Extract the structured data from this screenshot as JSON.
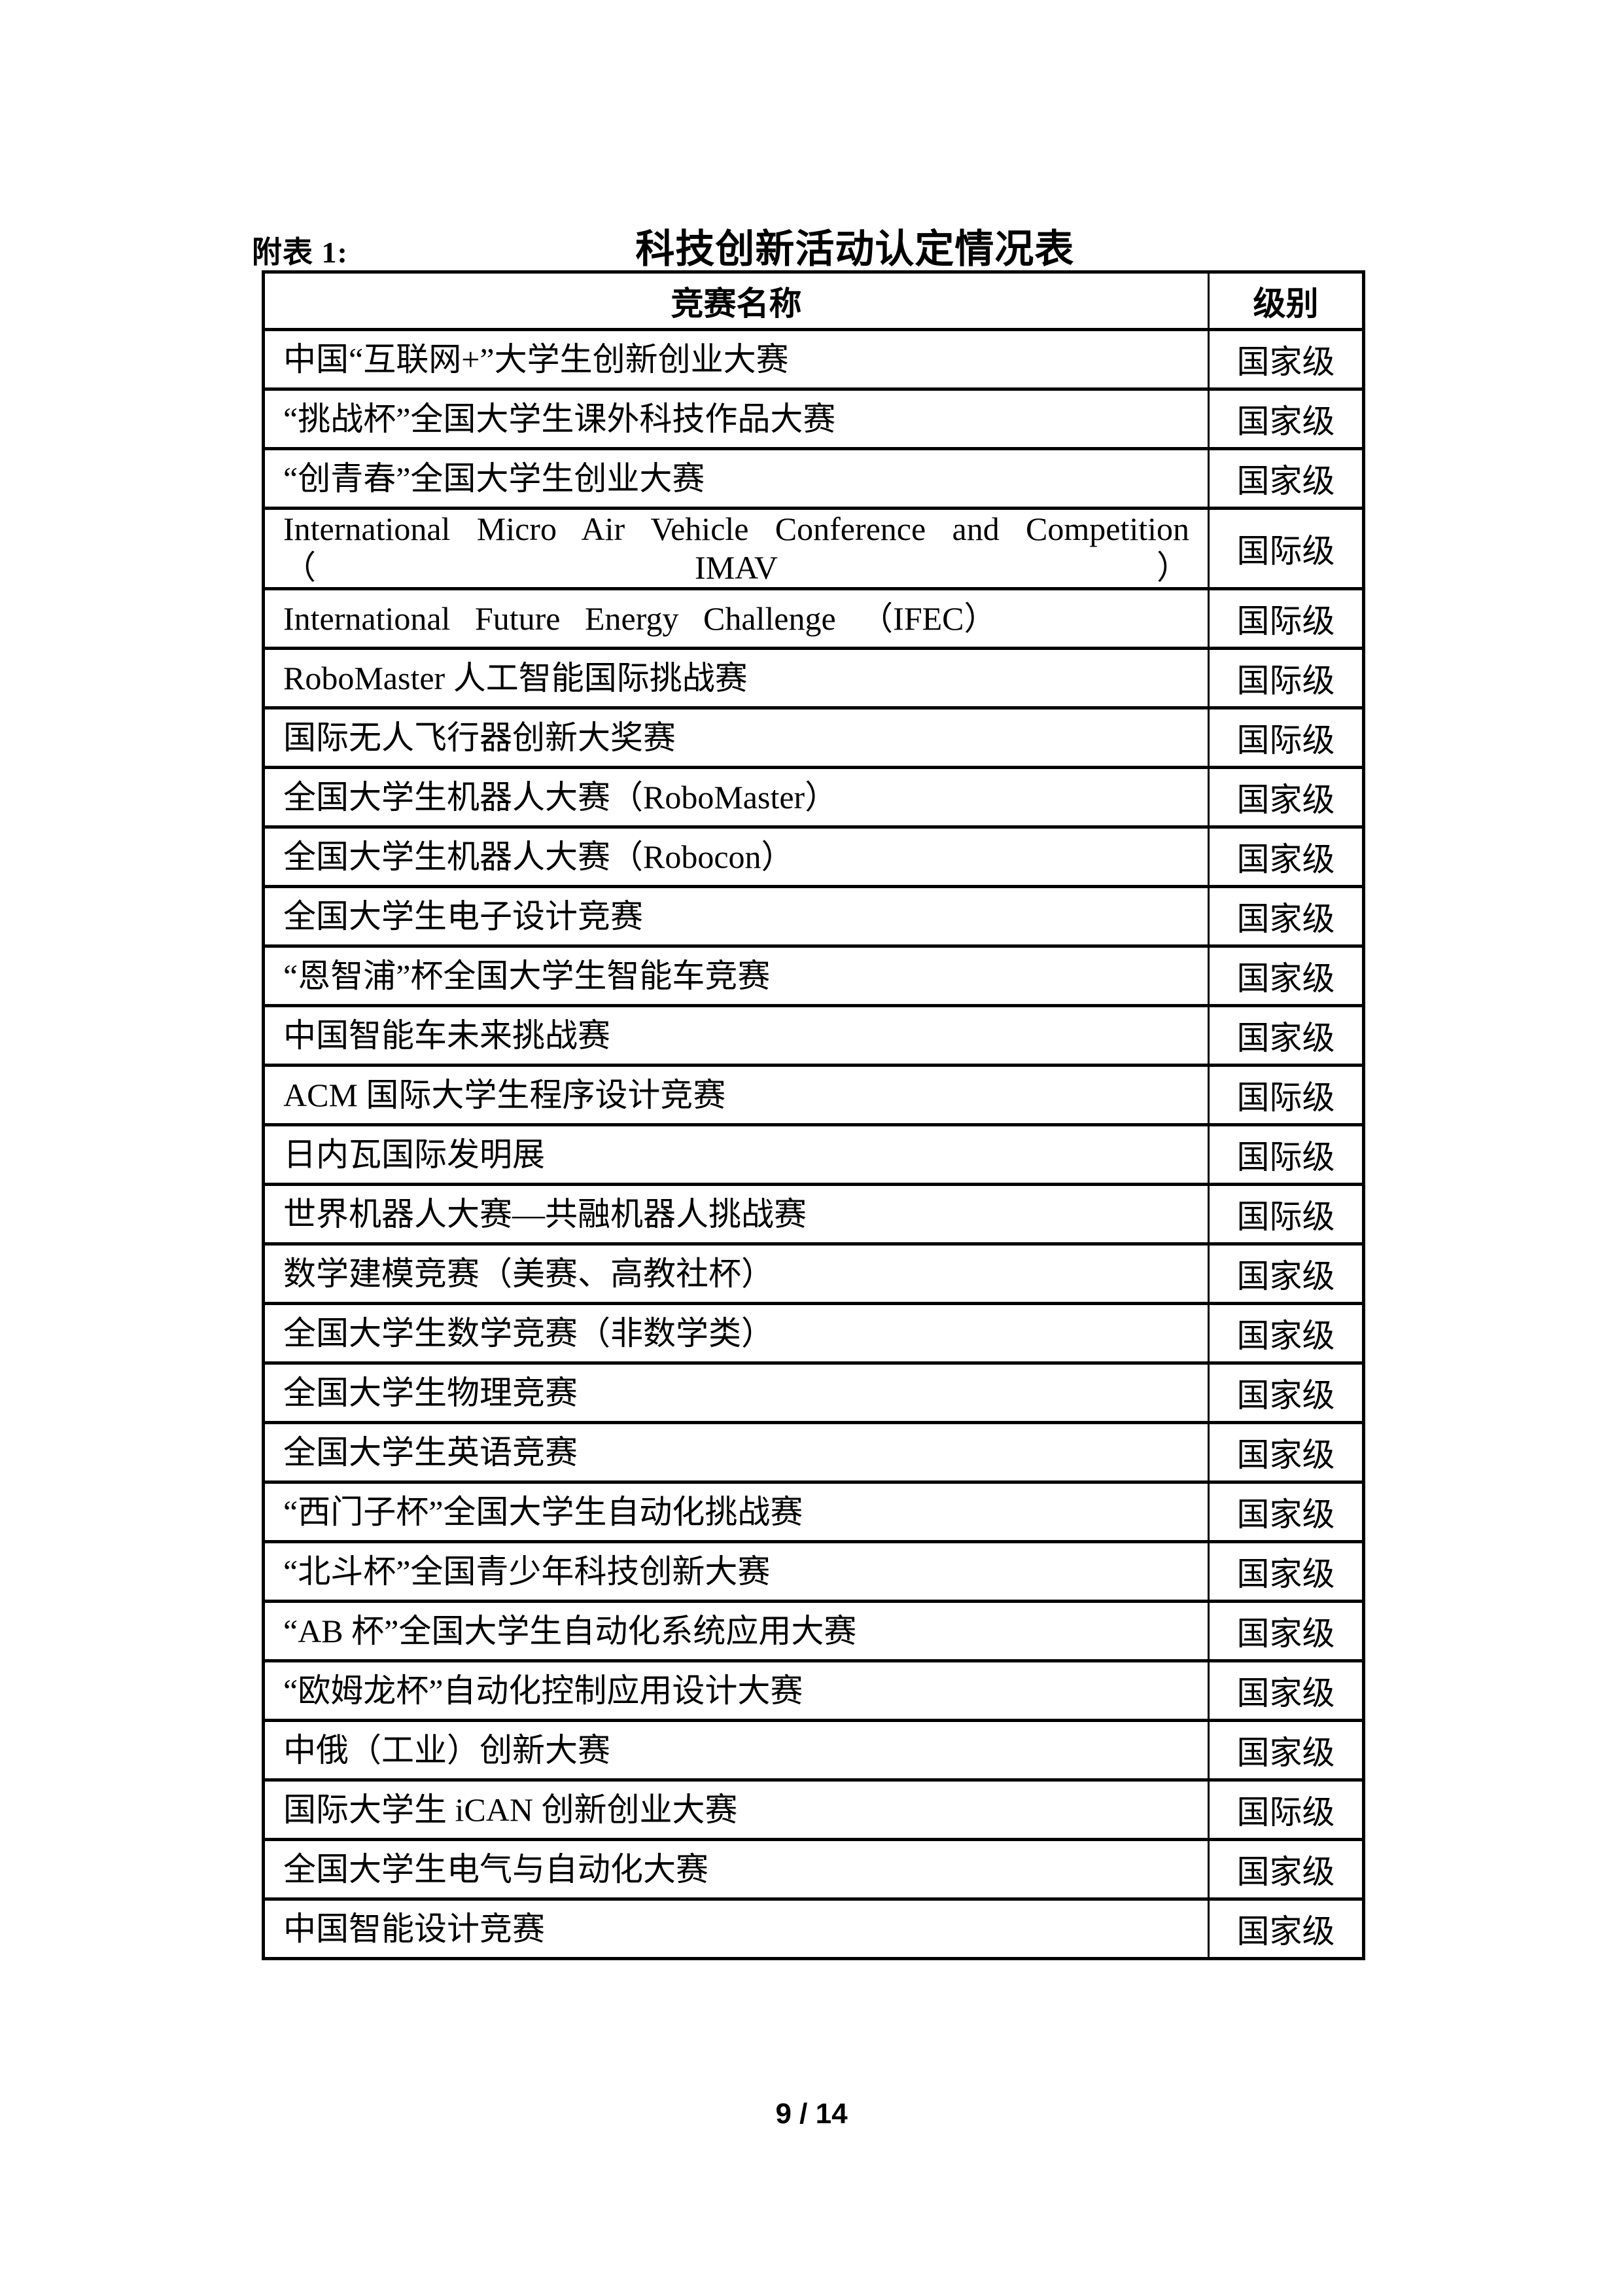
{
  "doc": {
    "attachment_label": "附表 1:",
    "title": "科技创新活动认定情况表"
  },
  "table": {
    "headers": {
      "name": "竞赛名称",
      "level": "级别"
    },
    "rows": [
      {
        "name": "中国“互联网+”大学生创新创业大赛",
        "level": "国家级"
      },
      {
        "name": "“挑战杯”全国大学生课外科技作品大赛",
        "level": "国家级"
      },
      {
        "name": "“创青春”全国大学生创业大赛",
        "level": "国家级"
      },
      {
        "name": "International Micro Air Vehicle Conference and Competition\n（IMAV）",
        "level": "国际级",
        "two_line": true,
        "justify": true
      },
      {
        "name": "International Future Energy Challenge （IFEC）",
        "level": "国际级",
        "wide_spacing": true
      },
      {
        "name": "RoboMaster 人工智能国际挑战赛",
        "level": "国际级"
      },
      {
        "name": "国际无人飞行器创新大奖赛",
        "level": "国际级"
      },
      {
        "name": "全国大学生机器人大赛（RoboMaster）",
        "level": "国家级"
      },
      {
        "name": "全国大学生机器人大赛（Robocon）",
        "level": "国家级"
      },
      {
        "name": "全国大学生电子设计竞赛",
        "level": "国家级"
      },
      {
        "name": "“恩智浦”杯全国大学生智能车竞赛",
        "level": "国家级"
      },
      {
        "name": "中国智能车未来挑战赛",
        "level": "国家级"
      },
      {
        "name": "ACM 国际大学生程序设计竞赛",
        "level": "国际级"
      },
      {
        "name": "日内瓦国际发明展",
        "level": "国际级"
      },
      {
        "name": "世界机器人大赛—共融机器人挑战赛",
        "level": "国际级"
      },
      {
        "name": "数学建模竞赛（美赛、高教社杯）",
        "level": "国家级"
      },
      {
        "name": "全国大学生数学竞赛（非数学类）",
        "level": "国家级"
      },
      {
        "name": "全国大学生物理竞赛",
        "level": "国家级"
      },
      {
        "name": "全国大学生英语竞赛",
        "level": "国家级"
      },
      {
        "name": "“西门子杯”全国大学生自动化挑战赛",
        "level": "国家级"
      },
      {
        "name": "“北斗杯”全国青少年科技创新大赛",
        "level": "国家级"
      },
      {
        "name": "“AB 杯”全国大学生自动化系统应用大赛",
        "level": "国家级"
      },
      {
        "name": "“欧姆龙杯”自动化控制应用设计大赛",
        "level": "国家级"
      },
      {
        "name": "中俄（工业）创新大赛",
        "level": "国家级"
      },
      {
        "name": "国际大学生 iCAN 创新创业大赛",
        "level": "国际级"
      },
      {
        "name": "全国大学生电气与自动化大赛",
        "level": "国家级"
      },
      {
        "name": "中国智能设计竞赛",
        "level": "国家级"
      }
    ]
  },
  "footer": {
    "page_indicator": "9 / 14"
  }
}
